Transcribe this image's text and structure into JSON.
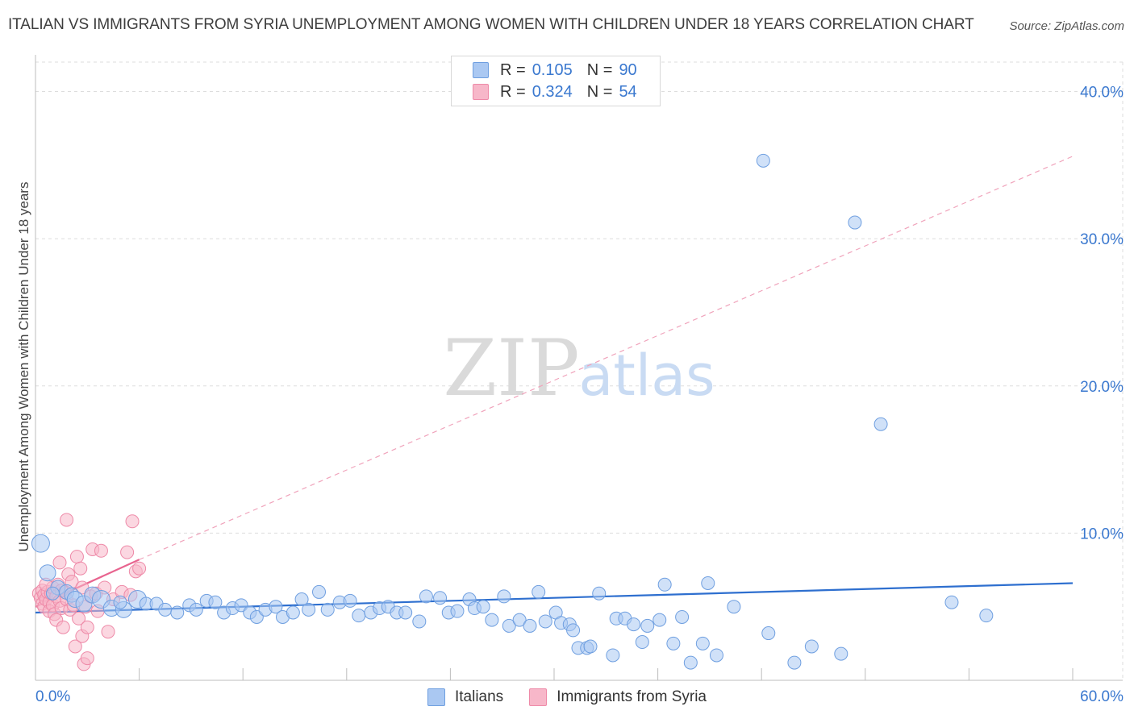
{
  "header": {
    "title": "ITALIAN VS IMMIGRANTS FROM SYRIA UNEMPLOYMENT AMONG WOMEN WITH CHILDREN UNDER 18 YEARS CORRELATION CHART",
    "source": "Source: ZipAtlas.com"
  },
  "watermark": {
    "zip": "ZIP",
    "atlas": "atlas"
  },
  "stats_legend": {
    "italians": {
      "r_label": "R =",
      "r_value": "0.105",
      "n_label": "N =",
      "n_value": "90"
    },
    "syria": {
      "r_label": "R =",
      "r_value": "0.324",
      "n_label": "N =",
      "n_value": "54"
    }
  },
  "colors": {
    "italians_fill": "#aac8f2",
    "italians_stroke": "#6f9fe0",
    "italians_line": "#2e6fcf",
    "syria_fill": "#f7b7c9",
    "syria_stroke": "#ee8aa8",
    "syria_line": "#e8648f",
    "tick_label": "#3a78cf",
    "grid": "#dddddd"
  },
  "chart_data": {
    "type": "scatter",
    "title": "ITALIAN VS IMMIGRANTS FROM SYRIA UNEMPLOYMENT AMONG WOMEN WITH CHILDREN UNDER 18 YEARS CORRELATION CHART",
    "xlabel": "",
    "ylabel": "Unemployment Among Women with Children Under 18 years",
    "xlim": [
      0,
      60
    ],
    "ylim": [
      0,
      42
    ],
    "x_tick_labels": [
      {
        "value": 0,
        "label": "0.0%"
      },
      {
        "value": 60,
        "label": "60.0%"
      }
    ],
    "y_tick_labels": [
      {
        "value": 10,
        "label": "10.0%"
      },
      {
        "value": 20,
        "label": "20.0%"
      },
      {
        "value": 30,
        "label": "30.0%"
      },
      {
        "value": 40,
        "label": "40.0%"
      }
    ],
    "x_minor_ticks": [
      6,
      12,
      18,
      24,
      30,
      36,
      42,
      48,
      54,
      60
    ],
    "grid": true,
    "legend_position": "top-center",
    "series": [
      {
        "name": "Italians",
        "r": 0.105,
        "n": 90,
        "trend": {
          "x": [
            0,
            60
          ],
          "y": [
            4.6,
            6.6
          ],
          "style": "solid"
        },
        "points": [
          [
            0.3,
            9.3,
            11
          ],
          [
            0.7,
            7.3,
            10
          ],
          [
            1.3,
            6.3,
            9
          ],
          [
            1.8,
            6.0,
            9
          ],
          [
            2.1,
            5.8,
            9
          ],
          [
            2.3,
            5.5,
            10
          ],
          [
            2.8,
            5.2,
            10
          ],
          [
            3.3,
            5.8,
            10
          ],
          [
            3.8,
            5.5,
            11
          ],
          [
            4.4,
            4.9,
            10
          ],
          [
            5.1,
            4.8,
            10
          ],
          [
            5.9,
            5.5,
            11
          ],
          [
            6.4,
            5.2,
            8
          ],
          [
            7.0,
            5.2,
            8
          ],
          [
            7.5,
            4.8,
            8
          ],
          [
            8.2,
            4.6,
            8
          ],
          [
            8.9,
            5.1,
            8
          ],
          [
            9.3,
            4.8,
            8
          ],
          [
            9.9,
            5.4,
            8
          ],
          [
            10.4,
            5.3,
            8
          ],
          [
            10.9,
            4.6,
            8
          ],
          [
            11.4,
            4.9,
            8
          ],
          [
            11.9,
            5.1,
            8
          ],
          [
            12.4,
            4.6,
            8
          ],
          [
            12.8,
            4.3,
            8
          ],
          [
            13.3,
            4.8,
            8
          ],
          [
            13.9,
            5.0,
            8
          ],
          [
            14.3,
            4.3,
            8
          ],
          [
            14.9,
            4.6,
            8
          ],
          [
            15.4,
            5.5,
            8
          ],
          [
            15.8,
            4.8,
            8
          ],
          [
            16.4,
            6.0,
            8
          ],
          [
            16.9,
            4.8,
            8
          ],
          [
            17.6,
            5.3,
            8
          ],
          [
            18.2,
            5.4,
            8
          ],
          [
            18.7,
            4.4,
            8
          ],
          [
            19.4,
            4.6,
            8
          ],
          [
            19.9,
            4.9,
            8
          ],
          [
            20.4,
            5.0,
            8
          ],
          [
            20.9,
            4.6,
            8
          ],
          [
            21.4,
            4.6,
            8
          ],
          [
            22.2,
            4.0,
            8
          ],
          [
            22.6,
            5.7,
            8
          ],
          [
            23.4,
            5.6,
            8
          ],
          [
            23.9,
            4.6,
            8
          ],
          [
            24.4,
            4.7,
            8
          ],
          [
            25.1,
            5.5,
            8
          ],
          [
            25.4,
            4.9,
            8
          ],
          [
            25.9,
            5.0,
            8
          ],
          [
            26.4,
            4.1,
            8
          ],
          [
            27.1,
            5.7,
            8
          ],
          [
            27.4,
            3.7,
            8
          ],
          [
            28.0,
            4.1,
            8
          ],
          [
            28.6,
            3.7,
            8
          ],
          [
            29.1,
            6.0,
            8
          ],
          [
            29.5,
            4.0,
            8
          ],
          [
            30.1,
            4.6,
            8
          ],
          [
            30.4,
            3.9,
            8
          ],
          [
            30.9,
            3.8,
            8
          ],
          [
            31.1,
            3.4,
            8
          ],
          [
            31.4,
            2.2,
            8
          ],
          [
            31.9,
            2.2,
            8
          ],
          [
            32.1,
            2.3,
            8
          ],
          [
            32.6,
            5.9,
            8
          ],
          [
            33.4,
            1.7,
            8
          ],
          [
            33.6,
            4.2,
            8
          ],
          [
            34.1,
            4.2,
            8
          ],
          [
            34.6,
            3.8,
            8
          ],
          [
            35.1,
            2.6,
            8
          ],
          [
            35.4,
            3.7,
            8
          ],
          [
            36.1,
            4.1,
            8
          ],
          [
            36.4,
            6.5,
            8
          ],
          [
            36.9,
            2.5,
            8
          ],
          [
            37.4,
            4.3,
            8
          ],
          [
            37.9,
            1.2,
            8
          ],
          [
            38.6,
            2.5,
            8
          ],
          [
            38.9,
            6.6,
            8
          ],
          [
            39.4,
            1.7,
            8
          ],
          [
            40.4,
            5.0,
            8
          ],
          [
            42.1,
            35.3,
            8
          ],
          [
            42.4,
            3.2,
            8
          ],
          [
            43.9,
            1.2,
            8
          ],
          [
            44.9,
            2.3,
            8
          ],
          [
            46.6,
            1.8,
            8
          ],
          [
            47.4,
            31.1,
            8
          ],
          [
            48.9,
            17.4,
            8
          ],
          [
            53.0,
            5.3,
            8
          ],
          [
            55.0,
            4.4,
            8
          ],
          [
            1.0,
            5.9,
            8
          ],
          [
            4.9,
            5.3,
            8
          ]
        ]
      },
      {
        "name": "Immigrants from Syria",
        "r": 0.324,
        "n": 54,
        "trend": {
          "x": [
            0,
            6.0
          ],
          "y": [
            5.0,
            8.2
          ],
          "style": "solid"
        },
        "trend_extended": {
          "x": [
            6.0,
            60
          ],
          "y": [
            8.2,
            35.6
          ],
          "style": "dashed"
        },
        "points": [
          [
            0.2,
            5.9,
            8
          ],
          [
            0.3,
            5.6,
            8
          ],
          [
            0.4,
            6.1,
            8
          ],
          [
            0.4,
            5.2,
            8
          ],
          [
            0.5,
            5.0,
            8
          ],
          [
            0.5,
            5.8,
            8
          ],
          [
            0.6,
            5.5,
            8
          ],
          [
            0.7,
            6.0,
            8
          ],
          [
            0.8,
            5.3,
            8
          ],
          [
            0.8,
            4.7,
            8
          ],
          [
            0.9,
            5.9,
            8
          ],
          [
            1.0,
            6.3,
            8
          ],
          [
            1.0,
            5.1,
            8
          ],
          [
            1.1,
            4.5,
            8
          ],
          [
            1.2,
            5.7,
            8
          ],
          [
            1.2,
            4.1,
            8
          ],
          [
            1.3,
            6.5,
            8
          ],
          [
            1.4,
            5.4,
            8
          ],
          [
            1.4,
            8.0,
            8
          ],
          [
            1.5,
            4.9,
            8
          ],
          [
            1.6,
            3.6,
            8
          ],
          [
            1.7,
            6.0,
            8
          ],
          [
            1.8,
            10.9,
            8
          ],
          [
            1.8,
            5.5,
            8
          ],
          [
            1.9,
            7.2,
            8
          ],
          [
            2.0,
            4.8,
            8
          ],
          [
            2.1,
            6.7,
            8
          ],
          [
            2.2,
            5.1,
            8
          ],
          [
            2.3,
            2.3,
            8
          ],
          [
            2.4,
            8.4,
            8
          ],
          [
            2.5,
            4.2,
            8
          ],
          [
            2.6,
            7.6,
            8
          ],
          [
            2.7,
            6.3,
            8
          ],
          [
            2.7,
            3.0,
            8
          ],
          [
            2.8,
            1.1,
            8
          ],
          [
            2.9,
            5.0,
            8
          ],
          [
            3.0,
            3.6,
            8
          ],
          [
            3.0,
            1.5,
            8
          ],
          [
            3.2,
            5.7,
            8
          ],
          [
            3.3,
            8.9,
            8
          ],
          [
            3.5,
            5.9,
            8
          ],
          [
            3.6,
            4.7,
            8
          ],
          [
            3.8,
            8.8,
            8
          ],
          [
            4.0,
            6.3,
            8
          ],
          [
            4.2,
            3.3,
            8
          ],
          [
            4.5,
            5.5,
            8
          ],
          [
            5.0,
            6.0,
            8
          ],
          [
            5.5,
            5.8,
            8
          ],
          [
            5.3,
            8.7,
            8
          ],
          [
            5.6,
            10.8,
            8
          ],
          [
            5.8,
            7.4,
            8
          ],
          [
            6.0,
            7.6,
            8
          ],
          [
            0.6,
            6.5,
            8
          ],
          [
            1.5,
            6.1,
            8
          ]
        ]
      }
    ]
  }
}
